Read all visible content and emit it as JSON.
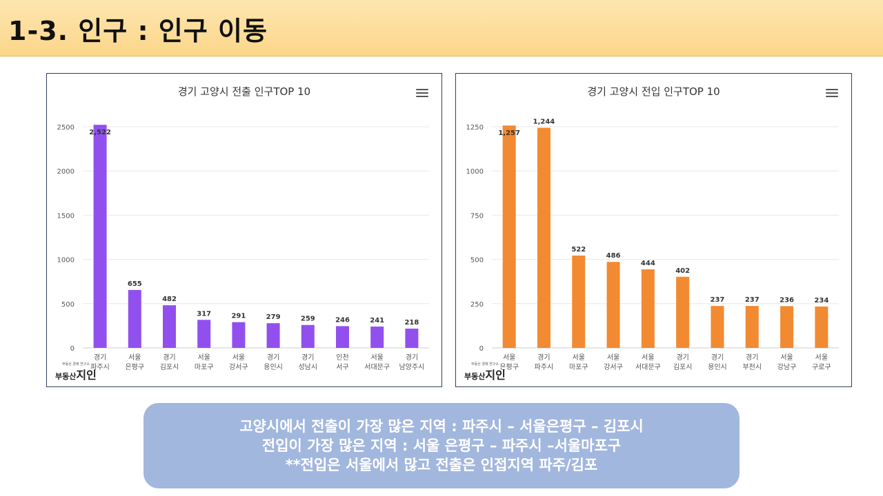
{
  "slide": {
    "title": "1-3. 인구 : 인구 이동"
  },
  "watermark": {
    "small": "부동산 경제 연구소",
    "prefix": "부동산",
    "brand": "지인"
  },
  "summary": {
    "lines": [
      "고양시에서 전출이 가장 많은 지역 : 파주시 – 서울은평구 – 김포시",
      "전입이 가장 많은 지역 : 서울 은평구 – 파주시 –서울마포구",
      "**전입은 서울에서 많고 전출은 인접지역 파주/김포"
    ]
  },
  "chart_data": [
    {
      "type": "bar",
      "title": "경기 고양시 전출 인구TOP 10",
      "color": "#9150ee",
      "categories": [
        [
          "경기",
          "파주시"
        ],
        [
          "서울",
          "은평구"
        ],
        [
          "경기",
          "김포시"
        ],
        [
          "서울",
          "마포구"
        ],
        [
          "서울",
          "강서구"
        ],
        [
          "경기",
          "용인시"
        ],
        [
          "경기",
          "성남시"
        ],
        [
          "인천",
          "서구"
        ],
        [
          "서울",
          "서대문구"
        ],
        [
          "경기",
          "남양주시"
        ]
      ],
      "values": [
        2522,
        655,
        482,
        317,
        291,
        279,
        259,
        246,
        241,
        218
      ],
      "value_labels": [
        "2,522",
        "655",
        "482",
        "317",
        "291",
        "279",
        "259",
        "246",
        "241",
        "218"
      ],
      "yticks": [
        0,
        500,
        1000,
        1500,
        2000,
        2500
      ],
      "ylim": [
        0,
        2500
      ],
      "grid": true
    },
    {
      "type": "bar",
      "title": "경기 고양시 전입 인구TOP 10",
      "color": "#f28a32",
      "categories": [
        [
          "서울",
          "은평구"
        ],
        [
          "경기",
          "파주시"
        ],
        [
          "서울",
          "마포구"
        ],
        [
          "서울",
          "강서구"
        ],
        [
          "서울",
          "서대문구"
        ],
        [
          "경기",
          "김포시"
        ],
        [
          "경기",
          "용인시"
        ],
        [
          "경기",
          "부천시"
        ],
        [
          "서울",
          "강남구"
        ],
        [
          "서울",
          "구로구"
        ]
      ],
      "values": [
        1257,
        1244,
        522,
        486,
        444,
        402,
        237,
        237,
        236,
        234
      ],
      "value_labels": [
        "1,257",
        "1,244",
        "522",
        "486",
        "444",
        "402",
        "237",
        "237",
        "236",
        "234"
      ],
      "yticks": [
        0,
        250,
        500,
        750,
        1000,
        1250
      ],
      "ylim": [
        0,
        1250
      ],
      "grid": true
    }
  ]
}
